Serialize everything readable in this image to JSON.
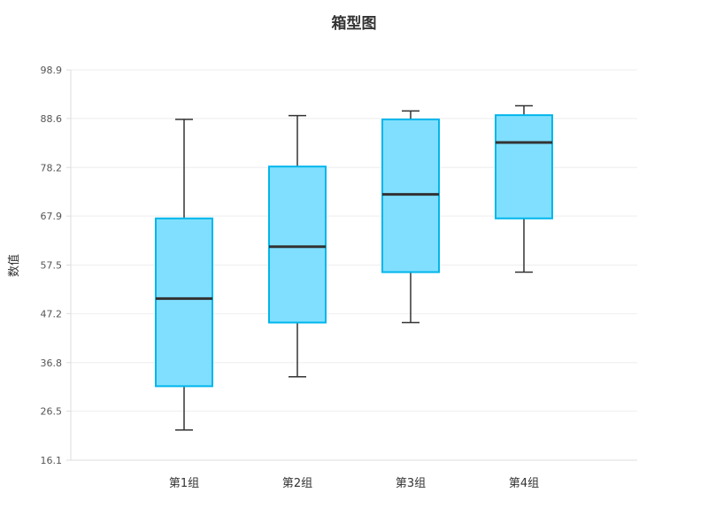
{
  "chart_data": {
    "type": "boxplot",
    "title": "箱型图",
    "xlabel": "",
    "ylabel": "数值",
    "ylim": [
      16.1,
      98.9
    ],
    "yticks": [
      "16.1",
      "26.5",
      "36.8",
      "47.2",
      "57.5",
      "67.9",
      "78.2",
      "88.6",
      "98.9"
    ],
    "categories": [
      "第1组",
      "第2组",
      "第3组",
      "第4组"
    ],
    "boxes": [
      {
        "min": 22.5,
        "q1": 31.8,
        "median": 50.4,
        "q3": 67.4,
        "max": 88.4
      },
      {
        "min": 33.8,
        "q1": 45.3,
        "median": 61.4,
        "q3": 78.4,
        "max": 89.2
      },
      {
        "min": 45.3,
        "q1": 56.0,
        "median": 72.5,
        "q3": 88.4,
        "max": 90.2
      },
      {
        "min": 56.0,
        "q1": 67.4,
        "median": 83.5,
        "q3": 89.3,
        "max": 91.3
      }
    ],
    "grid": true,
    "colors": {
      "box_fill": "#80dfff",
      "box_stroke": "#00b6ec",
      "median": "#333333",
      "whisker": "#333333",
      "grid": "#eeeeee",
      "axis": "#dddddd"
    }
  }
}
